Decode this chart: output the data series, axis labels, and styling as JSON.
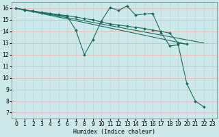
{
  "xlabel": "Humidex (Indice chaleur)",
  "bg_color": "#cce8e8",
  "line_color": "#1a6b5a",
  "grid_major_color": "#e8b0b0",
  "grid_minor_color": "#b8d8d8",
  "xlim": [
    -0.5,
    23.5
  ],
  "ylim": [
    6.5,
    16.5
  ],
  "xticks": [
    0,
    1,
    2,
    3,
    4,
    5,
    6,
    7,
    8,
    9,
    10,
    11,
    12,
    13,
    14,
    15,
    16,
    17,
    18,
    19,
    20,
    21,
    22,
    23
  ],
  "yticks": [
    7,
    8,
    9,
    10,
    11,
    12,
    13,
    14,
    15,
    16
  ],
  "series": [
    {
      "x": [
        0,
        1,
        2,
        3,
        4,
        5,
        6,
        7,
        8,
        9,
        10,
        11,
        12,
        13,
        14,
        15,
        16,
        17,
        18,
        19,
        20,
        21,
        22
      ],
      "y": [
        16,
        15.8,
        15.75,
        15.6,
        15.5,
        15.4,
        15.3,
        14.1,
        12.0,
        13.3,
        14.9,
        16.05,
        15.8,
        16.2,
        15.4,
        15.5,
        15.55,
        13.9,
        12.75,
        12.85,
        9.5,
        8.0,
        7.5
      ],
      "marker": "D",
      "markersize": 2.0
    },
    {
      "x": [
        0,
        1,
        2,
        3,
        4,
        5,
        6,
        7,
        8,
        9,
        10,
        11,
        12,
        13,
        14,
        15,
        16,
        17,
        18,
        19,
        20
      ],
      "y": [
        16,
        15.85,
        15.75,
        15.65,
        15.55,
        15.45,
        15.35,
        15.25,
        15.1,
        15.0,
        14.8,
        14.65,
        14.55,
        14.45,
        14.35,
        14.25,
        14.1,
        14.0,
        13.85,
        13.0,
        12.9
      ],
      "marker": "D",
      "markersize": 2.0
    },
    {
      "x": [
        0,
        22
      ],
      "y": [
        16.0,
        13.0
      ],
      "marker": null,
      "markersize": 0
    },
    {
      "x": [
        0,
        20
      ],
      "y": [
        16.0,
        12.9
      ],
      "marker": null,
      "markersize": 0
    }
  ]
}
